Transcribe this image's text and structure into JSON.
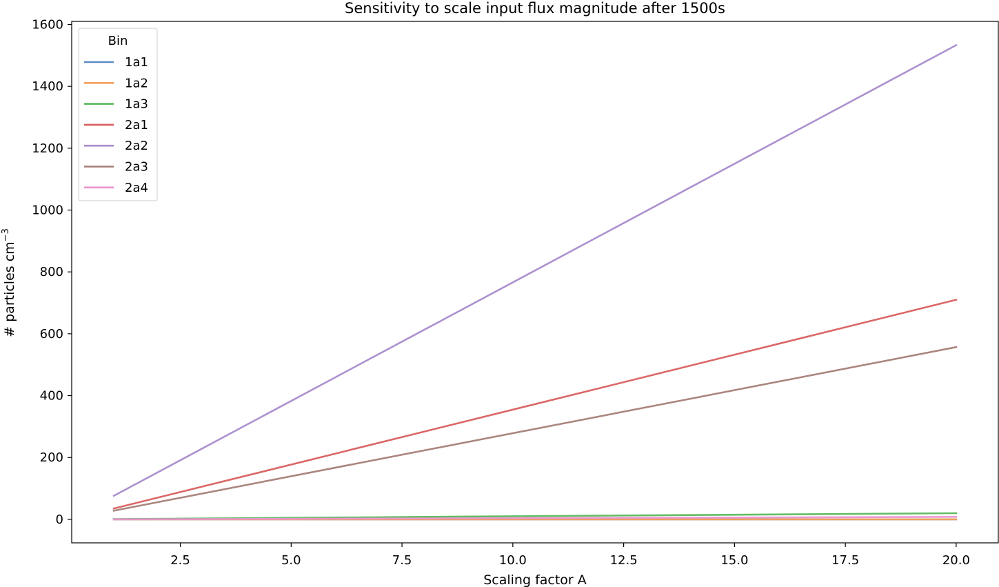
{
  "chart_data": {
    "type": "line",
    "title": "Sensitivity to scale input flux magnitude after 1500s",
    "xlabel": "Scaling factor A",
    "ylabel_main": "# particles cm",
    "ylabel_sup": "−3",
    "xlim": [
      0.05,
      20.95
    ],
    "ylim": [
      -76,
      1610
    ],
    "xticks": [
      2.5,
      5.0,
      7.5,
      10.0,
      12.5,
      15.0,
      17.5,
      20.0
    ],
    "xtick_labels": [
      "2.5",
      "5.0",
      "7.5",
      "10.0",
      "12.5",
      "15.0",
      "17.5",
      "20.0"
    ],
    "yticks": [
      0,
      200,
      400,
      600,
      800,
      1000,
      1200,
      1400,
      1600
    ],
    "ytick_labels": [
      "0",
      "200",
      "400",
      "600",
      "800",
      "1000",
      "1200",
      "1400",
      "1600"
    ],
    "legend_title": "Bin",
    "legend_position": "top-left",
    "grid": false,
    "series": [
      {
        "name": "1a1",
        "color": "#5b8ec4",
        "x": [
          1,
          20
        ],
        "y": [
          0,
          0
        ]
      },
      {
        "name": "1a2",
        "color": "#f5a05a",
        "x": [
          1,
          20
        ],
        "y": [
          0,
          0
        ]
      },
      {
        "name": "1a3",
        "color": "#5cb85c",
        "x": [
          1,
          20
        ],
        "y": [
          1,
          20
        ]
      },
      {
        "name": "2a1",
        "color": "#d95f5f",
        "x": [
          1,
          20
        ],
        "y": [
          35,
          710
        ]
      },
      {
        "name": "2a2",
        "color": "#a98bcc",
        "x": [
          1,
          20
        ],
        "y": [
          76,
          1533
        ]
      },
      {
        "name": "2a3",
        "color": "#a57f77",
        "x": [
          1,
          20
        ],
        "y": [
          28,
          557
        ]
      },
      {
        "name": "2a4",
        "color": "#eb94cf",
        "x": [
          1,
          20
        ],
        "y": [
          0,
          8
        ]
      }
    ]
  }
}
